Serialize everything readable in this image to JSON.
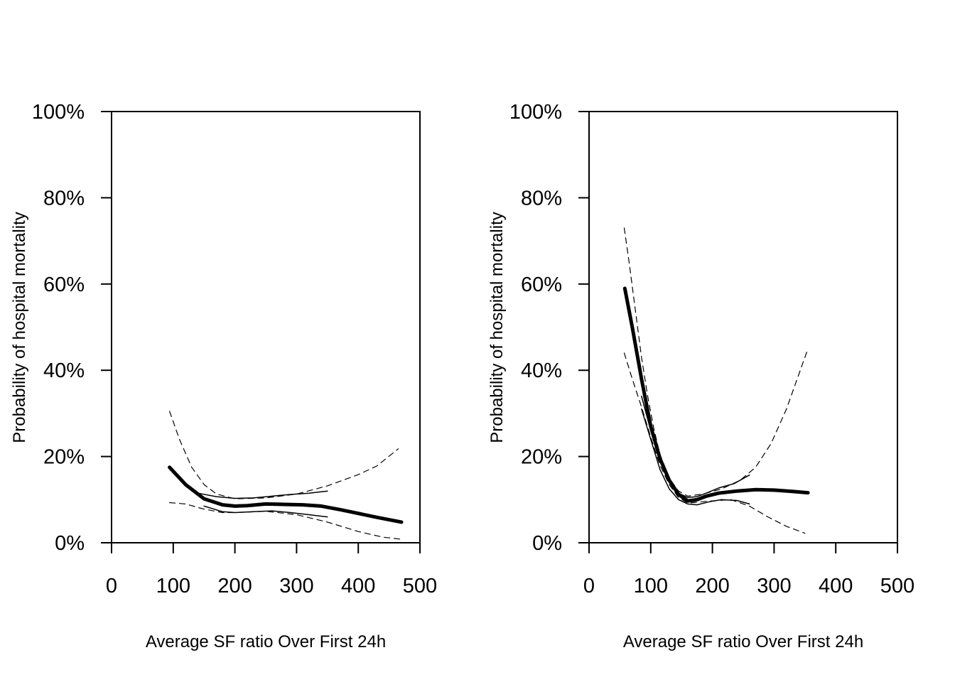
{
  "chart_data": [
    {
      "type": "line",
      "title": "",
      "xlabel": "Average SF ratio Over First 24h",
      "ylabel": "Probability of hospital mortality",
      "xlim": [
        0,
        500
      ],
      "ylim": [
        0,
        100
      ],
      "x_ticks": [
        "0",
        "100",
        "200",
        "300",
        "400",
        "500"
      ],
      "y_ticks": [
        "0%",
        "20%",
        "40%",
        "60%",
        "80%",
        "100%"
      ],
      "grid": false,
      "legend": "none",
      "series": [
        {
          "style": "thick-solid",
          "x": [
            94,
            120,
            150,
            180,
            200,
            220,
            250,
            280,
            310,
            340,
            370,
            400,
            430,
            470
          ],
          "y": [
            17.5,
            13.5,
            10.2,
            8.8,
            8.5,
            8.6,
            9.0,
            8.9,
            8.8,
            8.5,
            7.7,
            6.8,
            5.9,
            4.8
          ]
        },
        {
          "style": "thin-solid-upper",
          "x": [
            140,
            170,
            200,
            230,
            260,
            290,
            320,
            350
          ],
          "y": [
            11.5,
            10.7,
            10.3,
            10.4,
            10.8,
            11.2,
            11.5,
            12.0
          ]
        },
        {
          "style": "thin-solid-lower",
          "x": [
            150,
            180,
            200,
            230,
            260,
            290,
            320,
            350
          ],
          "y": [
            8.5,
            7.2,
            7.0,
            7.2,
            7.4,
            7.0,
            6.5,
            6.0
          ]
        },
        {
          "style": "dashed-upper",
          "x": [
            94,
            110,
            130,
            150,
            170,
            200,
            250,
            300,
            350,
            400,
            430,
            465
          ],
          "y": [
            30.5,
            24.0,
            17.5,
            13.5,
            11.3,
            10.2,
            10.4,
            11.3,
            13.2,
            15.8,
            17.8,
            21.8
          ]
        },
        {
          "style": "dashed-lower",
          "x": [
            94,
            120,
            150,
            180,
            200,
            250,
            300,
            350,
            400,
            440,
            470
          ],
          "y": [
            9.3,
            9.0,
            7.8,
            7.0,
            7.0,
            7.3,
            6.5,
            4.8,
            2.6,
            1.3,
            0.8
          ]
        }
      ]
    },
    {
      "type": "line",
      "title": "",
      "xlabel": "Average SF ratio Over First 24h",
      "ylabel": "Probability of hospital mortality",
      "xlim": [
        0,
        500
      ],
      "ylim": [
        0,
        100
      ],
      "x_ticks": [
        "0",
        "100",
        "200",
        "300",
        "400",
        "500"
      ],
      "y_ticks": [
        "0%",
        "20%",
        "40%",
        "60%",
        "80%",
        "100%"
      ],
      "grid": false,
      "legend": "none",
      "series": [
        {
          "style": "thick-solid",
          "x": [
            58,
            70,
            85,
            100,
            115,
            130,
            145,
            160,
            175,
            190,
            210,
            240,
            270,
            300,
            330,
            355
          ],
          "y": [
            59.0,
            50.0,
            38.0,
            27.0,
            19.5,
            14.5,
            11.2,
            9.7,
            10.0,
            10.8,
            11.5,
            12.0,
            12.3,
            12.2,
            11.9,
            11.6
          ]
        },
        {
          "style": "thin-solid-upper",
          "x": [
            85,
            100,
            115,
            130,
            145,
            160,
            175,
            190,
            210,
            235,
            260
          ],
          "y": [
            34.0,
            26.0,
            19.0,
            14.5,
            11.5,
            10.5,
            10.7,
            11.5,
            12.7,
            13.7,
            15.7
          ]
        },
        {
          "style": "thin-solid-lower",
          "x": [
            85,
            100,
            115,
            130,
            145,
            160,
            175,
            195,
            215,
            240,
            260
          ],
          "y": [
            31.0,
            24.0,
            17.0,
            12.5,
            10.0,
            9.0,
            8.8,
            9.5,
            10.0,
            9.8,
            9.0
          ]
        },
        {
          "style": "dashed-upper",
          "x": [
            57,
            65,
            75,
            85,
            95,
            105,
            115,
            130,
            145,
            160,
            185,
            215,
            245,
            270,
            295,
            320,
            355
          ],
          "y": [
            73.0,
            65.0,
            54.0,
            43.0,
            34.0,
            26.5,
            20.5,
            15.0,
            12.0,
            10.8,
            11.3,
            12.5,
            14.5,
            17.5,
            23.0,
            31.0,
            45.0
          ]
        },
        {
          "style": "dashed-lower",
          "x": [
            57,
            70,
            85,
            100,
            115,
            130,
            145,
            160,
            190,
            230,
            260,
            290,
            320,
            350
          ],
          "y": [
            44.0,
            38.0,
            31.5,
            24.5,
            18.0,
            13.5,
            10.5,
            9.2,
            9.6,
            10.0,
            8.5,
            6.0,
            3.8,
            2.2
          ]
        }
      ]
    }
  ]
}
